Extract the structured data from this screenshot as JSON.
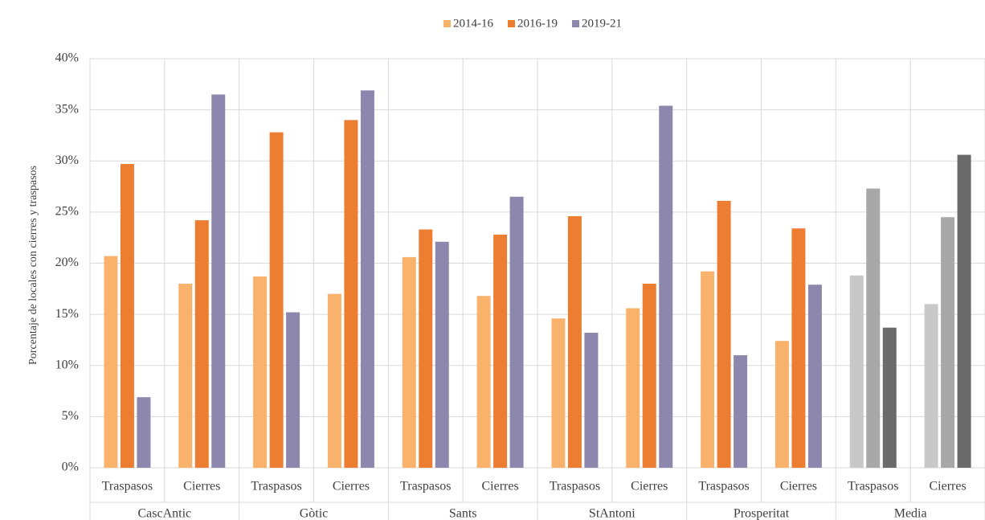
{
  "chart_data": {
    "type": "bar",
    "ylabel": "Porcentaje de locales con cierres y traspasos",
    "categories": [
      "Traspasos",
      "Cierres",
      "Traspasos",
      "Cierres",
      "Traspasos",
      "Cierres",
      "Traspasos",
      "Cierres",
      "Traspasos",
      "Cierres",
      "Traspasos",
      "Cierres"
    ],
    "groups": [
      "CascAntic",
      "Gòtic",
      "Sants",
      "StAntoni",
      "Prosperitat",
      "Media"
    ],
    "series": [
      {
        "name": "2014-16",
        "color": "#f8b26c",
        "values": [
          20.7,
          18.0,
          18.7,
          17.0,
          20.6,
          16.8,
          14.6,
          15.6,
          19.2,
          12.4,
          18.8,
          16.0
        ],
        "colors": [
          "#f8b26c",
          "#f8b26c",
          "#f8b26c",
          "#f8b26c",
          "#f8b26c",
          "#f8b26c",
          "#f8b26c",
          "#f8b26c",
          "#f8b26c",
          "#f8b26c",
          "#c8c8c8",
          "#c8c8c8"
        ]
      },
      {
        "name": "2016-19",
        "color": "#ed7d31",
        "values": [
          29.7,
          24.2,
          32.8,
          34.0,
          23.3,
          22.8,
          24.6,
          18.0,
          26.1,
          23.4,
          27.3,
          24.5
        ],
        "colors": [
          "#ed7d31",
          "#ed7d31",
          "#ed7d31",
          "#ed7d31",
          "#ed7d31",
          "#ed7d31",
          "#ed7d31",
          "#ed7d31",
          "#ed7d31",
          "#ed7d31",
          "#a8a8a8",
          "#a8a8a8"
        ]
      },
      {
        "name": "2019-21",
        "color": "#8d87ae",
        "values": [
          6.9,
          36.5,
          15.2,
          36.9,
          22.1,
          26.5,
          13.2,
          35.4,
          11.0,
          17.9,
          13.7,
          30.6
        ],
        "colors": [
          "#8d87ae",
          "#8d87ae",
          "#8d87ae",
          "#8d87ae",
          "#8d87ae",
          "#8d87ae",
          "#8d87ae",
          "#8d87ae",
          "#8d87ae",
          "#8d87ae",
          "#6a6a6a",
          "#6a6a6a"
        ]
      }
    ],
    "ylim": [
      0,
      40
    ],
    "yticks": [
      {
        "value": 0,
        "label": "0%"
      },
      {
        "value": 5,
        "label": "5%"
      },
      {
        "value": 10,
        "label": "10%"
      },
      {
        "value": 15,
        "label": "15%"
      },
      {
        "value": 20,
        "label": "20%"
      },
      {
        "value": 25,
        "label": "25%"
      },
      {
        "value": 30,
        "label": "30%"
      },
      {
        "value": 35,
        "label": "35%"
      },
      {
        "value": 40,
        "label": "40%"
      }
    ],
    "grid": true,
    "legend": "top"
  }
}
